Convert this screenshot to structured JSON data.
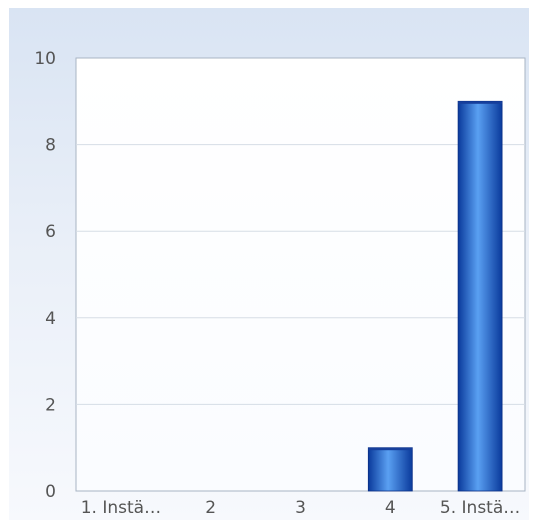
{
  "chart_data": {
    "type": "bar",
    "categories": [
      "1. Instä…",
      "2",
      "3",
      "4",
      "5. Instä…"
    ],
    "values": [
      0,
      0,
      0,
      1,
      9
    ],
    "ylim": [
      0,
      10
    ],
    "yticks": [
      0,
      2,
      4,
      6,
      8,
      10
    ],
    "title": "",
    "xlabel": "",
    "ylabel": "",
    "grid": true,
    "legend": "none",
    "colors": {
      "bar_dark": "#0a3a9c",
      "bar_light": "#5aa0f2",
      "grid": "#d6dde6",
      "axis": "#a8b4c3",
      "plot_bg": "#ffffff"
    }
  }
}
